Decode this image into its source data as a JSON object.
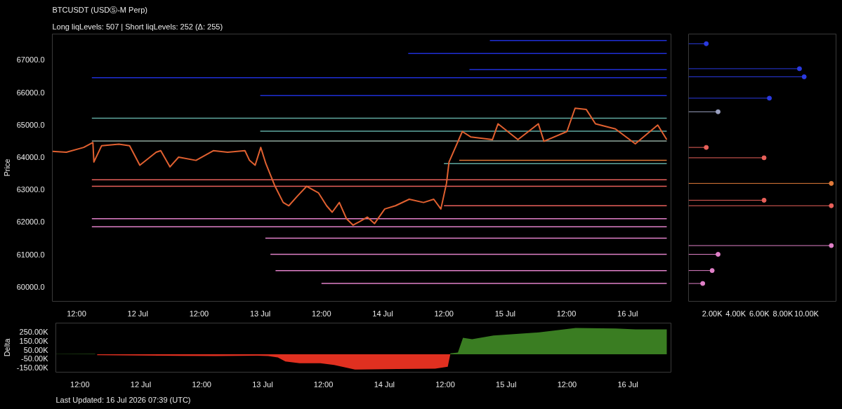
{
  "chart_data": [
    {
      "type": "line",
      "title": "BTCUSDT (USDⓈ-M Perp)",
      "subtitle": "Long liqLevels: 507 | Short liqLevels: 252 (Δ: 255)",
      "ylabel": "Price",
      "grid": false,
      "marker": "none",
      "line_style": "solid",
      "xlim": [
        "2026-07-11T07:15",
        "2026-07-16T08:30"
      ],
      "ylim": [
        59550,
        67800
      ],
      "xticks": [
        {
          "value": "2026-07-11T12:00",
          "label": "12:00"
        },
        {
          "value": "2026-07-12T00:00",
          "label": "12 Jul"
        },
        {
          "value": "2026-07-12T12:00",
          "label": "12:00"
        },
        {
          "value": "2026-07-13T00:00",
          "label": "13 Jul"
        },
        {
          "value": "2026-07-13T12:00",
          "label": "12:00"
        },
        {
          "value": "2026-07-14T00:00",
          "label": "14 Jul"
        },
        {
          "value": "2026-07-14T12:00",
          "label": "12:00"
        },
        {
          "value": "2026-07-15T00:00",
          "label": "15 Jul"
        },
        {
          "value": "2026-07-15T12:00",
          "label": "12:00"
        },
        {
          "value": "2026-07-16T00:00",
          "label": "16 Jul"
        }
      ],
      "yticks": [
        {
          "value": 60000,
          "label": "60000.0"
        },
        {
          "value": 61000,
          "label": "61000.0"
        },
        {
          "value": 62000,
          "label": "62000.0"
        },
        {
          "value": 63000,
          "label": "63000.0"
        },
        {
          "value": 64000,
          "label": "64000.0"
        },
        {
          "value": 65000,
          "label": "65000.0"
        },
        {
          "value": 66000,
          "label": "66000.0"
        },
        {
          "value": 67000,
          "label": "67000.0"
        }
      ],
      "series": [
        {
          "type": "line",
          "color": "#1f2fd6",
          "x": [
            "2026-07-11T15:00",
            "2026-07-16T07:40"
          ],
          "values": [
            66450,
            66450
          ]
        },
        {
          "type": "line",
          "color": "#1f2fd6",
          "x": [
            "2026-07-13T00:00",
            "2026-07-16T07:40"
          ],
          "values": [
            65900,
            65900
          ]
        },
        {
          "type": "line",
          "color": "#1f2fd6",
          "x": [
            "2026-07-14T05:00",
            "2026-07-16T07:40"
          ],
          "values": [
            67200,
            67200
          ]
        },
        {
          "type": "line",
          "color": "#1f2fd6",
          "x": [
            "2026-07-14T21:00",
            "2026-07-16T07:40"
          ],
          "values": [
            67600,
            67600
          ]
        },
        {
          "type": "line",
          "color": "#1f2fd6",
          "x": [
            "2026-07-14T17:00",
            "2026-07-16T07:40"
          ],
          "values": [
            66700,
            66700
          ]
        },
        {
          "type": "line",
          "color": "#5fa8a0",
          "x": [
            "2026-07-11T15:00",
            "2026-07-16T07:40"
          ],
          "values": [
            65200,
            65200
          ]
        },
        {
          "type": "line",
          "color": "#8fa89c",
          "x": [
            "2026-07-11T15:00",
            "2026-07-16T07:40"
          ],
          "values": [
            64500,
            64500
          ]
        },
        {
          "type": "line",
          "color": "#5fa8a0",
          "x": [
            "2026-07-13T00:00",
            "2026-07-16T07:40"
          ],
          "values": [
            64800,
            64800
          ]
        },
        {
          "type": "line",
          "color": "#5fa8a0",
          "x": [
            "2026-07-14T12:00",
            "2026-07-16T07:40"
          ],
          "values": [
            63800,
            63800
          ]
        },
        {
          "type": "line",
          "color": "#e07a3a",
          "x": [
            "2026-07-14T15:00",
            "2026-07-16T07:40"
          ],
          "values": [
            63900,
            63900
          ]
        },
        {
          "type": "line",
          "color": "#e8605a",
          "x": [
            "2026-07-11T15:00",
            "2026-07-16T07:40"
          ],
          "values": [
            63300,
            63300
          ]
        },
        {
          "type": "line",
          "color": "#e8605a",
          "x": [
            "2026-07-11T15:00",
            "2026-07-16T07:40"
          ],
          "values": [
            63100,
            63100
          ]
        },
        {
          "type": "line",
          "color": "#e8605a",
          "x": [
            "2026-07-14T12:00",
            "2026-07-16T07:40"
          ],
          "values": [
            62500,
            62500
          ]
        },
        {
          "type": "line",
          "color": "#e080c8",
          "x": [
            "2026-07-11T15:00",
            "2026-07-16T07:40"
          ],
          "values": [
            62100,
            62100
          ]
        },
        {
          "type": "line",
          "color": "#e080c8",
          "x": [
            "2026-07-11T15:00",
            "2026-07-16T07:40"
          ],
          "values": [
            61850,
            61850
          ]
        },
        {
          "type": "line",
          "color": "#e080c8",
          "x": [
            "2026-07-13T01:00",
            "2026-07-16T07:40"
          ],
          "values": [
            61500,
            61500
          ]
        },
        {
          "type": "line",
          "color": "#e080c8",
          "x": [
            "2026-07-13T02:00",
            "2026-07-16T07:40"
          ],
          "values": [
            61000,
            61000
          ]
        },
        {
          "type": "line",
          "color": "#e080c8",
          "x": [
            "2026-07-13T03:00",
            "2026-07-16T07:40"
          ],
          "values": [
            60500,
            60500
          ]
        },
        {
          "type": "line",
          "color": "#e080c8",
          "x": [
            "2026-07-13T12:00",
            "2026-07-16T07:40"
          ],
          "values": [
            60100,
            60100
          ]
        },
        {
          "type": "line",
          "color": "#e06030",
          "x": [
            "2026-07-11T07:18",
            "2026-07-11T10:00",
            "2026-07-11T13:24",
            "2026-07-11T15:12",
            "2026-07-11T15:24",
            "2026-07-11T16:54",
            "2026-07-11T20:18",
            "2026-07-11T22:24",
            "2026-07-12T00:24",
            "2026-07-12T03:36",
            "2026-07-12T04:30",
            "2026-07-12T06:18",
            "2026-07-12T08:00",
            "2026-07-12T11:24",
            "2026-07-12T14:48",
            "2026-07-12T17:36",
            "2026-07-12T21:00",
            "2026-07-12T21:54",
            "2026-07-12T23:00",
            "2026-07-13T00:06",
            "2026-07-13T01:06",
            "2026-07-13T02:54",
            "2026-07-13T04:30",
            "2026-07-13T05:36",
            "2026-07-13T07:18",
            "2026-07-13T09:06",
            "2026-07-13T11:24",
            "2026-07-13T13:00",
            "2026-07-13T14:06",
            "2026-07-13T15:30",
            "2026-07-13T16:54",
            "2026-07-13T18:12",
            "2026-07-13T19:54",
            "2026-07-13T21:00",
            "2026-07-13T22:24",
            "2026-07-14T00:24",
            "2026-07-14T02:30",
            "2026-07-14T05:12",
            "2026-07-14T08:00",
            "2026-07-14T10:00",
            "2026-07-14T11:24",
            "2026-07-14T12:30",
            "2026-07-14T13:00",
            "2026-07-14T15:36",
            "2026-07-14T17:18",
            "2026-07-14T21:30",
            "2026-07-14T22:36",
            "2026-07-15T02:30",
            "2026-07-15T06:30",
            "2026-07-15T07:36",
            "2026-07-15T12:06",
            "2026-07-15T13:42",
            "2026-07-15T15:54",
            "2026-07-15T17:42",
            "2026-07-15T21:36",
            "2026-07-16T01:30",
            "2026-07-16T05:54",
            "2026-07-16T07:40"
          ],
          "values": [
            64180,
            64150,
            64300,
            64450,
            63850,
            64350,
            64400,
            64350,
            63750,
            64150,
            64200,
            63700,
            64000,
            63900,
            64200,
            64150,
            64200,
            63900,
            63750,
            64300,
            63800,
            63100,
            62600,
            62500,
            62800,
            63100,
            62900,
            62500,
            62300,
            62600,
            62100,
            61900,
            62050,
            62150,
            61950,
            62400,
            62500,
            62700,
            62600,
            62700,
            62400,
            63190,
            63850,
            64790,
            64620,
            64540,
            65030,
            64540,
            65030,
            64490,
            64790,
            65510,
            65470,
            65030,
            64870,
            64410,
            64990,
            64540
          ]
        }
      ]
    },
    {
      "type": "lollipop",
      "orientation": "horizontal",
      "marker": "circle",
      "tick_labels": "x",
      "ylim": [
        59550,
        67800
      ],
      "xlim": [
        0,
        12500
      ],
      "xticks": [
        {
          "value": 2000,
          "label": "2.00K"
        },
        {
          "value": 4000,
          "label": "4.00K"
        },
        {
          "value": 6000,
          "label": "6.00K"
        },
        {
          "value": 8000,
          "label": "8.00K"
        },
        {
          "value": 10000,
          "label": "10.00K"
        }
      ],
      "x": [
        66730,
        66480,
        65820,
        65400,
        63980,
        63190,
        62670,
        62500,
        61270,
        61000,
        60500,
        64300,
        67500,
        60100
      ],
      "values": [
        9400,
        9800,
        6850,
        2500,
        6400,
        12100,
        6400,
        12100,
        12100,
        2500,
        2000,
        1500,
        1500,
        1200
      ],
      "colors": [
        "#2a3ae0",
        "#2a3ae0",
        "#2a3ae0",
        "#9aa0c0",
        "#e8605a",
        "#e07a3a",
        "#e8605a",
        "#e8605a",
        "#e080c8",
        "#e080c8",
        "#e080c8",
        "#e8605a",
        "#2a3ae0",
        "#e080c8"
      ]
    },
    {
      "type": "area",
      "ylabel": "Delta",
      "grid": false,
      "annotations": [
        "Last Updated: 16 Jul 2026 07:39 (UTC)"
      ],
      "xlim": [
        "2026-07-11T07:15",
        "2026-07-16T08:30"
      ],
      "ylim": [
        -200000,
        350000
      ],
      "xticks": [
        {
          "value": "2026-07-11T12:00",
          "label": "12:00"
        },
        {
          "value": "2026-07-12T00:00",
          "label": "12 Jul"
        },
        {
          "value": "2026-07-12T12:00",
          "label": "12:00"
        },
        {
          "value": "2026-07-13T00:00",
          "label": "13 Jul"
        },
        {
          "value": "2026-07-13T12:00",
          "label": "12:00"
        },
        {
          "value": "2026-07-14T00:00",
          "label": "14 Jul"
        },
        {
          "value": "2026-07-14T12:00",
          "label": "12:00"
        },
        {
          "value": "2026-07-15T00:00",
          "label": "15 Jul"
        },
        {
          "value": "2026-07-15T12:00",
          "label": "12:00"
        },
        {
          "value": "2026-07-16T00:00",
          "label": "16 Jul"
        }
      ],
      "yticks": [
        {
          "value": -150000,
          "label": "-150.00K"
        },
        {
          "value": -50000,
          "label": "-50.00K"
        },
        {
          "value": 50000,
          "label": "50.00K"
        },
        {
          "value": 150000,
          "label": "150.00K"
        },
        {
          "value": 250000,
          "label": "250.00K"
        }
      ],
      "series": [
        {
          "color": "#3a7d22",
          "x": [
            "2026-07-11T07:18",
            "2026-07-11T15:00"
          ],
          "values": [
            3000,
            5000
          ]
        },
        {
          "color": "#e03020",
          "x": [
            "2026-07-11T15:24",
            "2026-07-12T14:48",
            "2026-07-12T23:00",
            "2026-07-13T01:06",
            "2026-07-13T03:00",
            "2026-07-13T04:30",
            "2026-07-13T07:18",
            "2026-07-13T11:24",
            "2026-07-13T14:06",
            "2026-07-13T18:12",
            "2026-07-14T02:30",
            "2026-07-14T10:00",
            "2026-07-14T12:30",
            "2026-07-14T13:00"
          ],
          "values": [
            -10000,
            -20000,
            -15000,
            -20000,
            -35000,
            -80000,
            -100000,
            -100000,
            -120000,
            -170000,
            -165000,
            -160000,
            -140000,
            0
          ]
        },
        {
          "color": "#3a7d22",
          "x": [
            "2026-07-14T13:00",
            "2026-07-14T14:30",
            "2026-07-14T15:30",
            "2026-07-14T17:18",
            "2026-07-14T21:30",
            "2026-07-15T06:30",
            "2026-07-15T13:42",
            "2026-07-15T21:36",
            "2026-07-16T01:30",
            "2026-07-16T07:40"
          ],
          "values": [
            10000,
            20000,
            185000,
            170000,
            210000,
            245000,
            295000,
            290000,
            280000,
            280000
          ]
        }
      ]
    }
  ]
}
